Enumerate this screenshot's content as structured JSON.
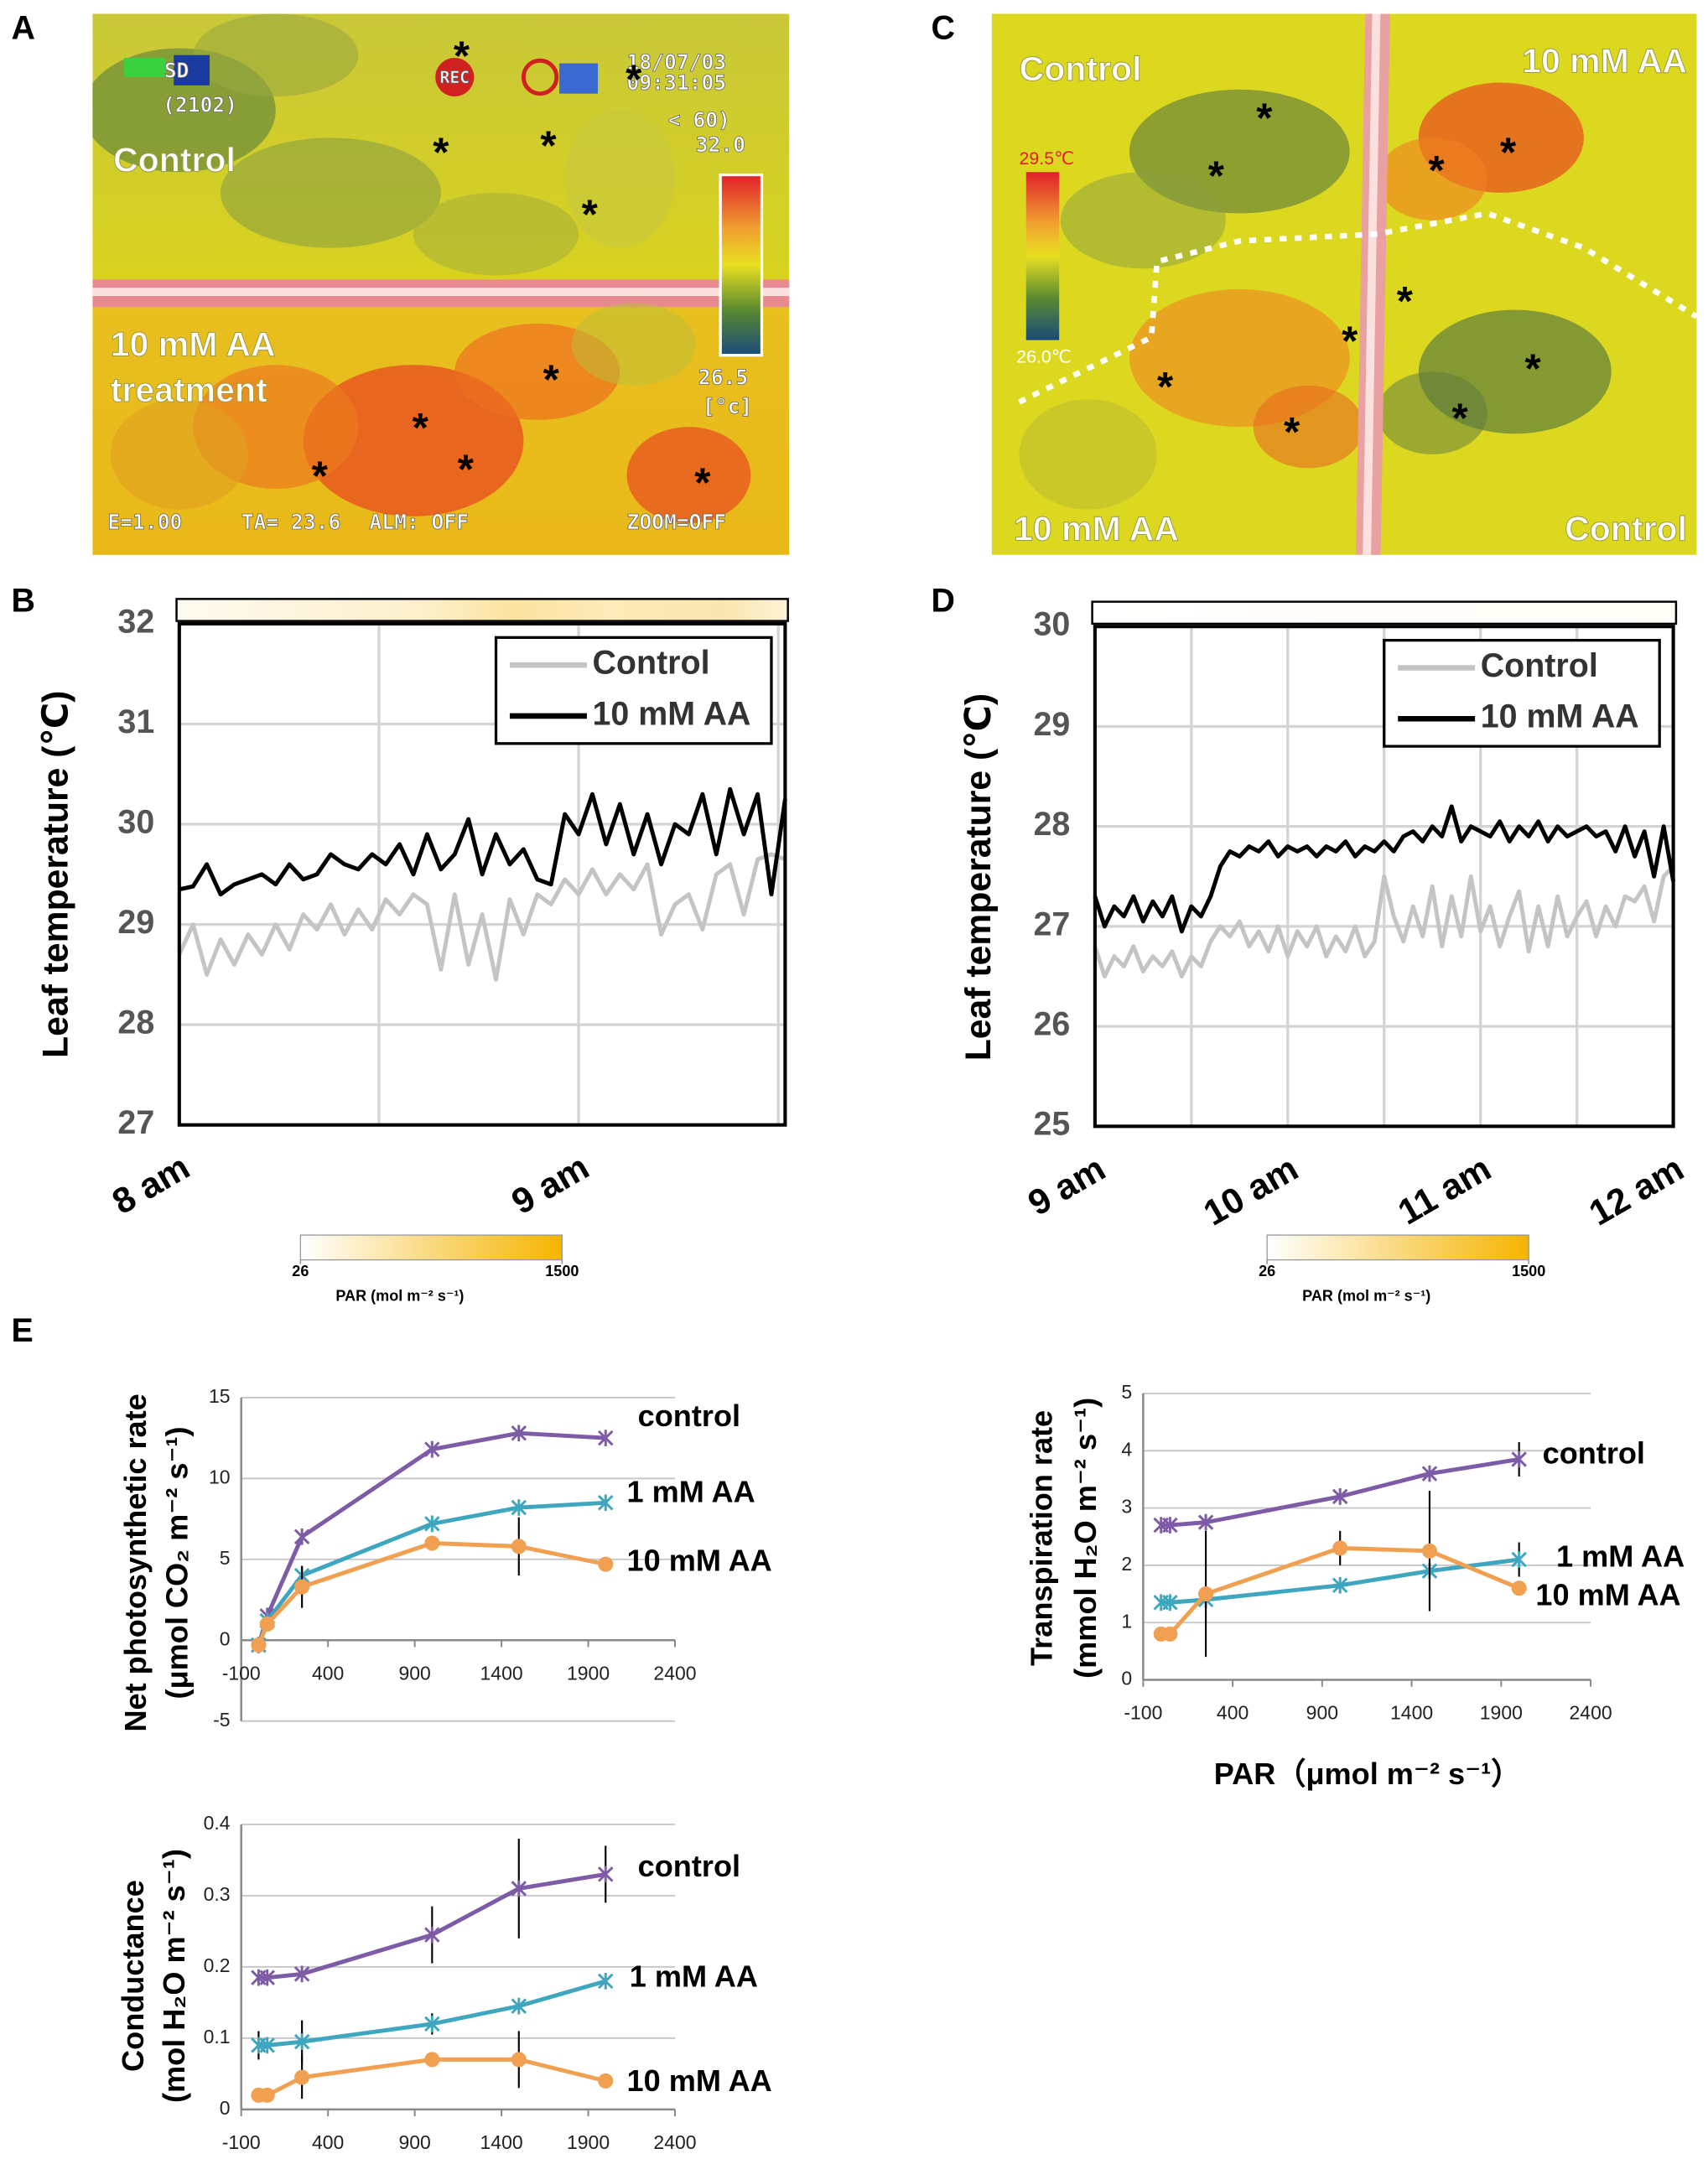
{
  "panel_labels": [
    "A",
    "B",
    "C",
    "D",
    "E"
  ],
  "thermal_images": {
    "A": {
      "labels": [
        "Control",
        "10 mM AA",
        "treatment"
      ],
      "overlay": [
        "SD",
        "REC",
        "(2102)",
        "18/07/03",
        "09:31:05",
        "< 60)",
        "E=1.00",
        "TA= 23.6",
        "ALM: OFF",
        "ZOOM=OFF"
      ],
      "scale_max": "32.0",
      "scale_min": "26.5",
      "scale_unit": "[°c]",
      "asterisk": "*"
    },
    "C": {
      "labels": [
        "Control",
        "10 mM AA",
        "10 mM AA",
        "Control"
      ],
      "scale_max": "29.5℃",
      "scale_min": "26.0℃",
      "asterisk": "*"
    }
  },
  "chart_data": [
    {
      "type": "line",
      "y_label": "Leaf temperature (℃)",
      "categories": [
        "8 am",
        null,
        null,
        null,
        null,
        null,
        null,
        null,
        null,
        null,
        null,
        null,
        null,
        null,
        null,
        null,
        null,
        null,
        null,
        null,
        null,
        null,
        null,
        null,
        null,
        null,
        null,
        null,
        null,
        "9 am",
        null,
        null,
        null,
        null,
        null,
        null,
        null,
        null,
        null,
        null,
        null,
        null,
        null,
        null,
        null
      ],
      "series": [
        {
          "name": "Control",
          "color": "#c4c4c4",
          "values": [
            28.7,
            29.0,
            28.5,
            28.85,
            28.6,
            28.9,
            28.7,
            29.0,
            28.75,
            29.1,
            28.95,
            29.2,
            28.9,
            29.15,
            28.95,
            29.25,
            29.1,
            29.3,
            29.2,
            28.55,
            29.3,
            28.6,
            29.1,
            28.45,
            29.25,
            28.9,
            29.3,
            29.2,
            29.45,
            29.3,
            29.55,
            29.3,
            29.5,
            29.35,
            29.6,
            28.9,
            29.2,
            29.3,
            28.95,
            29.5,
            29.6,
            29.1,
            29.65,
            29.7,
            29.65
          ]
        },
        {
          "name": "10 mM AA",
          "color": "#000000",
          "values": [
            29.35,
            29.38,
            29.6,
            29.3,
            29.4,
            29.45,
            29.5,
            29.4,
            29.6,
            29.45,
            29.5,
            29.7,
            29.6,
            29.55,
            29.7,
            29.6,
            29.8,
            29.5,
            29.9,
            29.55,
            29.7,
            30.05,
            29.5,
            29.9,
            29.6,
            29.75,
            29.45,
            29.4,
            30.1,
            29.9,
            30.3,
            29.8,
            30.2,
            29.7,
            30.1,
            29.6,
            30.0,
            29.9,
            30.3,
            29.7,
            30.35,
            29.9,
            30.3,
            29.3,
            30.25
          ]
        }
      ],
      "ylim": [
        27,
        32
      ],
      "yticks": [
        27,
        28,
        29,
        30,
        31,
        32
      ],
      "grid": true,
      "legend": "top-right",
      "colorbar": {
        "ticks": [
          26,
          1500
        ],
        "label": "PAR (mol m⁻² s⁻¹)"
      }
    },
    {
      "type": "line",
      "y_label": "Leaf temperature (℃)",
      "categories": [
        "9 am",
        null,
        null,
        null,
        null,
        null,
        null,
        null,
        null,
        null,
        null,
        null,
        null,
        null,
        null,
        null,
        null,
        null,
        null,
        null,
        "10 am",
        null,
        null,
        null,
        null,
        null,
        null,
        null,
        null,
        null,
        null,
        null,
        null,
        null,
        null,
        null,
        null,
        null,
        null,
        null,
        "11 am",
        null,
        null,
        null,
        null,
        null,
        null,
        null,
        null,
        null,
        null,
        null,
        null,
        null,
        null,
        null,
        null,
        null,
        null,
        null,
        "12 am"
      ],
      "series": [
        {
          "name": "Control",
          "color": "#c4c4c4",
          "values": [
            26.8,
            26.5,
            26.7,
            26.6,
            26.8,
            26.55,
            26.7,
            26.6,
            26.75,
            26.5,
            26.7,
            26.6,
            26.85,
            27.0,
            26.9,
            27.05,
            26.8,
            26.95,
            26.75,
            27.0,
            26.7,
            26.95,
            26.8,
            27.0,
            26.7,
            26.9,
            26.75,
            27.0,
            26.7,
            26.85,
            27.5,
            27.1,
            26.85,
            27.2,
            26.9,
            27.4,
            26.8,
            27.3,
            26.9,
            27.5,
            26.95,
            27.2,
            26.8,
            27.1,
            27.35,
            26.75,
            27.2,
            26.8,
            27.3,
            26.9,
            27.1,
            27.25,
            26.9,
            27.2,
            27.0,
            27.3,
            27.25,
            27.4,
            27.05,
            27.5,
            27.6
          ]
        },
        {
          "name": "10 mM AA",
          "color": "#000000",
          "values": [
            27.3,
            27.0,
            27.2,
            27.1,
            27.3,
            27.05,
            27.25,
            27.1,
            27.3,
            26.95,
            27.2,
            27.1,
            27.3,
            27.6,
            27.75,
            27.7,
            27.8,
            27.75,
            27.85,
            27.7,
            27.8,
            27.75,
            27.8,
            27.7,
            27.8,
            27.75,
            27.85,
            27.7,
            27.8,
            27.75,
            27.85,
            27.75,
            27.9,
            27.95,
            27.85,
            28.0,
            27.9,
            28.2,
            27.85,
            28.0,
            27.95,
            27.9,
            28.05,
            27.85,
            28.0,
            27.9,
            28.05,
            27.85,
            28.0,
            27.9,
            27.95,
            28.0,
            27.9,
            27.95,
            27.75,
            28.0,
            27.7,
            27.95,
            27.5,
            28.0,
            27.45
          ]
        }
      ],
      "ylim": [
        25,
        30
      ],
      "yticks": [
        25,
        26,
        27,
        28,
        29,
        30
      ],
      "grid": true,
      "legend": "top-right",
      "colorbar": {
        "ticks": [
          26,
          1500
        ],
        "label": "PAR (mol m⁻² s⁻¹)"
      }
    },
    {
      "type": "line",
      "y_label": [
        "Net photosynthetic rate",
        "(μmol CO₂ m⁻² s⁻¹)"
      ],
      "x": [
        0,
        50,
        250,
        1000,
        1500,
        2000
      ],
      "series": [
        {
          "name": "control",
          "color": "#7e5ba6",
          "marker": "star",
          "values": [
            -0.3,
            1.5,
            6.4,
            11.8,
            12.8,
            12.5
          ],
          "errors": [
            null,
            null,
            null,
            null,
            null,
            null
          ]
        },
        {
          "name": "1 mM AA",
          "color": "#3ea6bf",
          "marker": "star",
          "values": [
            -0.3,
            1.2,
            4.0,
            7.2,
            8.2,
            8.5
          ],
          "errors": [
            null,
            null,
            null,
            null,
            null,
            null
          ]
        },
        {
          "name": "10 mM AA",
          "color": "#f0a050",
          "marker": "circle",
          "values": [
            -0.3,
            1.0,
            3.3,
            6.0,
            5.8,
            4.7
          ],
          "errors": [
            null,
            null,
            1.3,
            null,
            1.8,
            null
          ]
        }
      ],
      "xlim": [
        -100,
        2400
      ],
      "xticks": [
        -100,
        400,
        900,
        1400,
        1900,
        2400
      ],
      "ylim": [
        -5,
        15
      ],
      "yticks": [
        -5,
        0,
        5,
        10,
        15
      ],
      "grid": true
    },
    {
      "type": "line",
      "y_label": [
        "Transpiration rate",
        "(mmol H₂O m⁻² s⁻¹)"
      ],
      "x_label": "PAR（μmol m⁻² s⁻¹）",
      "x": [
        0,
        50,
        250,
        1000,
        1500,
        2000
      ],
      "series": [
        {
          "name": "control",
          "color": "#7e5ba6",
          "marker": "star",
          "values": [
            2.7,
            2.7,
            2.75,
            3.2,
            3.6,
            3.85
          ],
          "errors": [
            null,
            null,
            null,
            null,
            null,
            0.3
          ]
        },
        {
          "name": "1 mM AA",
          "color": "#3ea6bf",
          "marker": "star",
          "values": [
            1.35,
            1.35,
            1.4,
            1.65,
            1.9,
            2.1
          ],
          "errors": [
            null,
            null,
            null,
            null,
            null,
            0.3
          ]
        },
        {
          "name": "10 mM AA",
          "color": "#f0a050",
          "marker": "circle",
          "values": [
            0.8,
            0.8,
            1.5,
            2.3,
            2.25,
            1.6
          ],
          "errors": [
            null,
            null,
            1.1,
            0.3,
            1.05,
            null
          ]
        }
      ],
      "xlim": [
        -100,
        2400
      ],
      "xticks": [
        -100,
        400,
        900,
        1400,
        1900,
        2400
      ],
      "ylim": [
        0,
        5
      ],
      "yticks": [
        0,
        1,
        2,
        3,
        4,
        5
      ],
      "grid": true
    },
    {
      "type": "line",
      "y_label": [
        "Conductance",
        "(mol H₂O m⁻² s⁻¹)"
      ],
      "x": [
        0,
        50,
        250,
        1000,
        1500,
        2000
      ],
      "series": [
        {
          "name": "control",
          "color": "#7e5ba6",
          "marker": "star",
          "values": [
            0.185,
            0.185,
            0.19,
            0.245,
            0.31,
            0.33
          ],
          "errors": [
            null,
            null,
            null,
            0.04,
            0.07,
            0.04
          ]
        },
        {
          "name": "1 mM AA",
          "color": "#3ea6bf",
          "marker": "star",
          "values": [
            0.09,
            0.09,
            0.095,
            0.12,
            0.145,
            0.18
          ],
          "errors": [
            0.02,
            null,
            0.03,
            0.015,
            null,
            null
          ]
        },
        {
          "name": "10 mM AA",
          "color": "#f0a050",
          "marker": "circle",
          "values": [
            0.02,
            0.02,
            0.045,
            0.07,
            0.07,
            0.04
          ],
          "errors": [
            null,
            null,
            0.03,
            0.01,
            0.04,
            null
          ]
        }
      ],
      "xlim": [
        -100,
        2400
      ],
      "xticks": [
        -100,
        400,
        900,
        1400,
        1900,
        2400
      ],
      "ylim": [
        0,
        0.4
      ],
      "yticks": [
        0,
        0.1,
        0.2,
        0.3,
        0.4
      ],
      "grid": true
    }
  ]
}
